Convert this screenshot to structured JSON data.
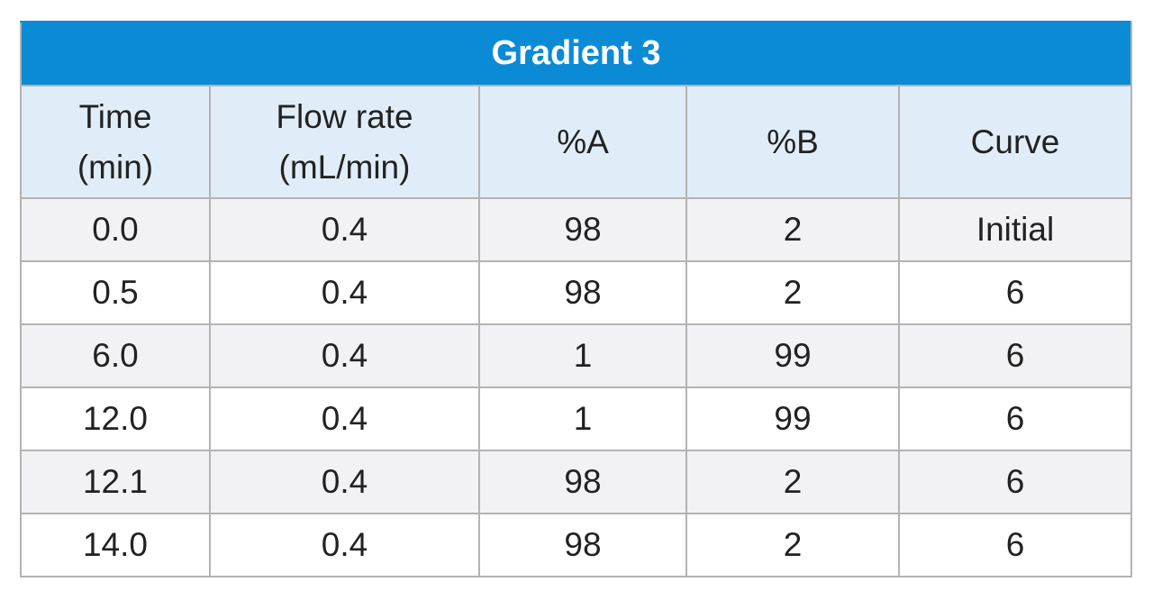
{
  "table": {
    "title": "Gradient 3",
    "columns": [
      {
        "line1": "Time",
        "line2": "(min)"
      },
      {
        "line1": "Flow rate",
        "line2": "(mL/min)"
      },
      {
        "line1": "%A",
        "line2": ""
      },
      {
        "line1": "%B",
        "line2": ""
      },
      {
        "line1": "Curve",
        "line2": ""
      }
    ],
    "rows": [
      [
        "0.0",
        "0.4",
        "98",
        "2",
        "Initial"
      ],
      [
        "0.5",
        "0.4",
        "98",
        "2",
        "6"
      ],
      [
        "6.0",
        "0.4",
        "1",
        "99",
        "6"
      ],
      [
        "12.0",
        "0.4",
        "1",
        "99",
        "6"
      ],
      [
        "12.1",
        "0.4",
        "98",
        "2",
        "6"
      ],
      [
        "14.0",
        "0.4",
        "98",
        "2",
        "6"
      ]
    ]
  },
  "colors": {
    "title_background": "#0b8bd6",
    "header_background": "#e0edf8",
    "odd_row_background": "#f2f2f4",
    "even_row_background": "#ffffff",
    "border": "#b3b3b3"
  }
}
